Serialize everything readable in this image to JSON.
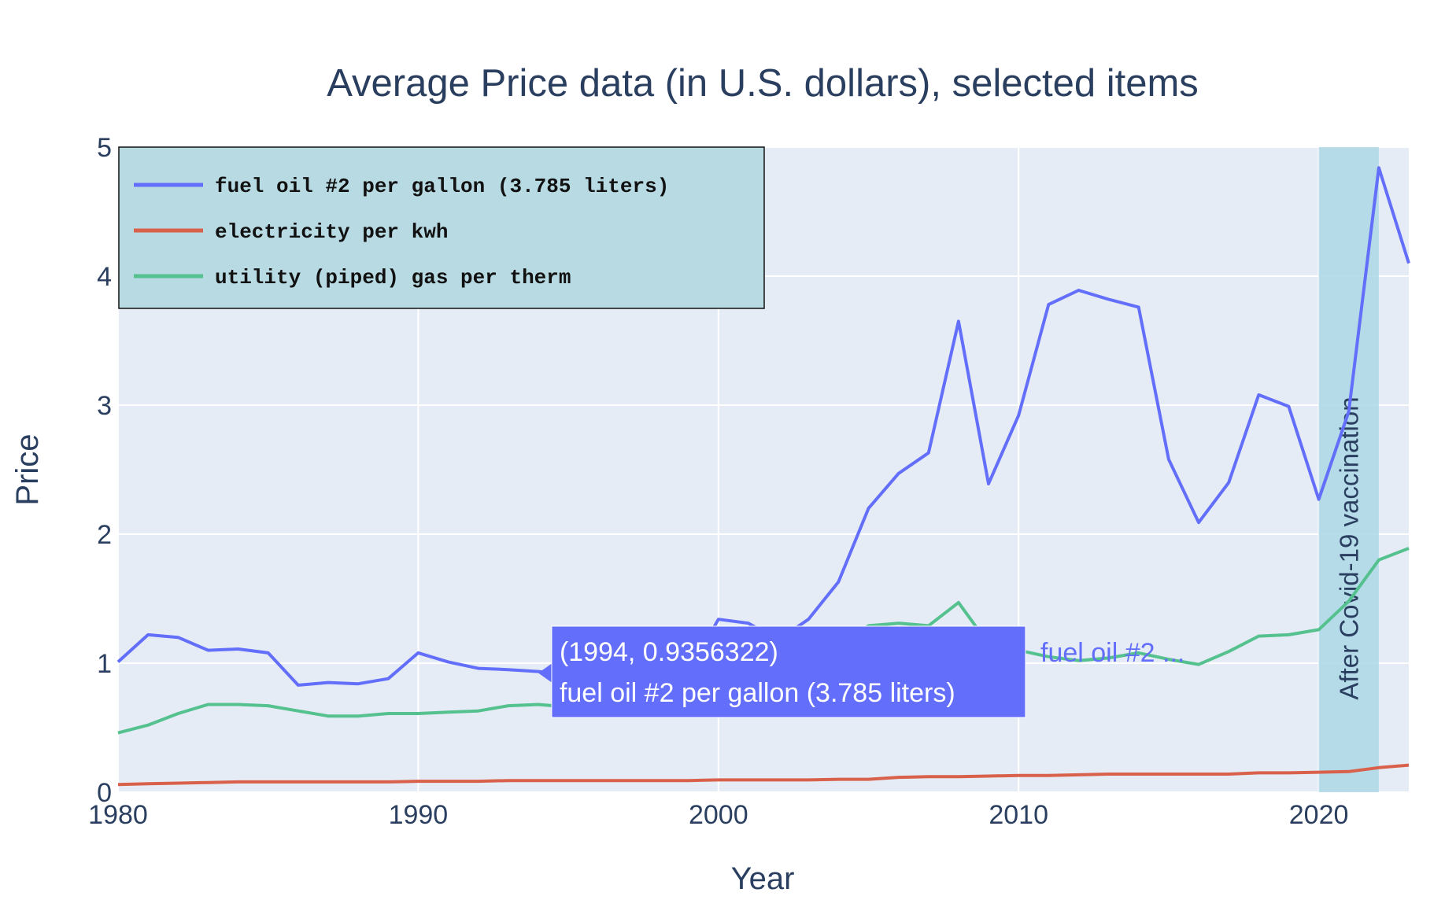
{
  "chart_data": {
    "type": "line",
    "title": "Average Price data (in U.S. dollars), selected items",
    "xlabel": "Year",
    "ylabel": "Price",
    "xlim": [
      1980,
      2023
    ],
    "ylim": [
      0,
      5
    ],
    "x_ticks": [
      1980,
      1990,
      2000,
      2010,
      2020
    ],
    "y_ticks": [
      0,
      1,
      2,
      3,
      4,
      5
    ],
    "grid": true,
    "legend_position": "top-left",
    "x": [
      1980,
      1981,
      1982,
      1983,
      1984,
      1985,
      1986,
      1987,
      1988,
      1989,
      1990,
      1991,
      1992,
      1993,
      1994,
      1995,
      1996,
      1997,
      1998,
      1999,
      2000,
      2001,
      2002,
      2003,
      2004,
      2005,
      2006,
      2007,
      2008,
      2009,
      2010,
      2011,
      2012,
      2013,
      2014,
      2015,
      2016,
      2017,
      2018,
      2019,
      2020,
      2021,
      2022,
      2023
    ],
    "series": [
      {
        "name": "fuel oil #2 per gallon (3.785 liters)",
        "color": "#636efa",
        "values": [
          1.01,
          1.22,
          1.2,
          1.1,
          1.11,
          1.08,
          0.83,
          0.85,
          0.84,
          0.88,
          1.08,
          1.01,
          0.96,
          0.95,
          0.9356322,
          0.91,
          1.0,
          1.0,
          0.9,
          0.93,
          1.34,
          1.31,
          1.18,
          1.34,
          1.63,
          2.2,
          2.47,
          2.63,
          3.65,
          2.39,
          2.92,
          3.78,
          3.89,
          3.82,
          3.76,
          2.58,
          2.09,
          2.4,
          3.08,
          2.99,
          2.27,
          2.95,
          4.84,
          4.1
        ]
      },
      {
        "name": "electricity per kwh",
        "color": "#d9604a",
        "values": [
          0.06,
          0.065,
          0.07,
          0.075,
          0.08,
          0.08,
          0.08,
          0.08,
          0.08,
          0.08,
          0.085,
          0.085,
          0.085,
          0.09,
          0.09,
          0.09,
          0.09,
          0.09,
          0.09,
          0.09,
          0.095,
          0.095,
          0.095,
          0.095,
          0.1,
          0.1,
          0.115,
          0.12,
          0.12,
          0.125,
          0.13,
          0.13,
          0.135,
          0.14,
          0.14,
          0.14,
          0.14,
          0.14,
          0.15,
          0.15,
          0.155,
          0.16,
          0.19,
          0.21
        ]
      },
      {
        "name": "utility (piped) gas per therm",
        "color": "#55c18f",
        "values": [
          0.46,
          0.52,
          0.61,
          0.68,
          0.68,
          0.67,
          0.63,
          0.59,
          0.59,
          0.61,
          0.61,
          0.62,
          0.63,
          0.67,
          0.68,
          0.66,
          0.69,
          0.72,
          0.7,
          0.69,
          0.85,
          1.1,
          0.9,
          1.06,
          1.12,
          1.29,
          1.31,
          1.29,
          1.47,
          1.15,
          1.1,
          1.05,
          1.02,
          1.04,
          1.08,
          1.03,
          0.99,
          1.09,
          1.21,
          1.22,
          1.26,
          1.48,
          1.8,
          1.89
        ]
      }
    ],
    "shaded_region": {
      "x0": 2020,
      "x1": 2022,
      "label": "After Covid-19 vaccination",
      "color": "#add8e6"
    },
    "hover": {
      "x_value": 1994,
      "y_value": 0.9356322,
      "coord_text": "(1994, 0.9356322)",
      "series_text": "fuel oil #2 per gallon (3.785 liters)",
      "ghost_label": "fuel oil #2 ..."
    }
  },
  "colors": {
    "plot_background": "#e5ecf6",
    "legend_background": "#b8dae3",
    "text": "#2a3f5f",
    "gridline": "#ffffff",
    "hover_background": "#636efa"
  }
}
